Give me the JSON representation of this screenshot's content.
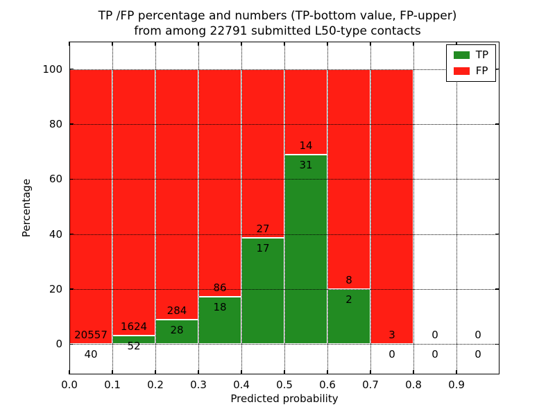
{
  "title": {
    "line1": "TP /FP percentage and numbers (TP-bottom value, FP-upper)",
    "line2": "from among 22791 submitted L50-type contacts"
  },
  "axes": {
    "xlabel": "Predicted probability",
    "ylabel": "Percentage",
    "x_ticks": [
      "0.0",
      "0.1",
      "0.2",
      "0.3",
      "0.4",
      "0.5",
      "0.6",
      "0.7",
      "0.8",
      "0.9"
    ],
    "y_ticks": [
      "0",
      "20",
      "40",
      "60",
      "80",
      "100"
    ]
  },
  "legend": {
    "items": [
      {
        "label": "TP",
        "color": "#228b22"
      },
      {
        "label": "FP",
        "color": "#ff1e14"
      }
    ]
  },
  "colors": {
    "tp": "#228b22",
    "fp": "#ff1e14",
    "grid": "#000000",
    "bar_edge": "#ffffff",
    "background": "#ffffff"
  },
  "chart_data": {
    "type": "bar",
    "stacked": true,
    "title": "TP /FP percentage and numbers (TP-bottom value, FP-upper) from among 22791 submitted L50-type contacts",
    "xlabel": "Predicted probability",
    "ylabel": "Percentage",
    "total_contacts": 22791,
    "xlim": [
      0,
      1.0
    ],
    "ylim": [
      -11,
      110
    ],
    "bin_width": 0.1,
    "grid": true,
    "legend_position": "upper right",
    "note": "Each bin stacks TP% (green, bottom) and FP% (red, top) to 100%; labels show raw counts: FP above boundary, TP below",
    "bins": [
      {
        "range": "0.0-0.1",
        "tp": 40,
        "fp": 20557,
        "tp_pct": 0.19
      },
      {
        "range": "0.1-0.2",
        "tp": 52,
        "fp": 1624,
        "tp_pct": 3.1
      },
      {
        "range": "0.2-0.3",
        "tp": 28,
        "fp": 284,
        "tp_pct": 8.97
      },
      {
        "range": "0.3-0.4",
        "tp": 18,
        "fp": 86,
        "tp_pct": 17.31
      },
      {
        "range": "0.4-0.5",
        "tp": 17,
        "fp": 27,
        "tp_pct": 38.64
      },
      {
        "range": "0.5-0.6",
        "tp": 31,
        "fp": 14,
        "tp_pct": 68.89
      },
      {
        "range": "0.6-0.7",
        "tp": 2,
        "fp": 8,
        "tp_pct": 20.0
      },
      {
        "range": "0.7-0.8",
        "tp": 0,
        "fp": 3,
        "tp_pct": 0.0
      },
      {
        "range": "0.8-0.9",
        "tp": 0,
        "fp": 0,
        "tp_pct": null
      },
      {
        "range": "0.9-1.0",
        "tp": 0,
        "fp": 0,
        "tp_pct": null
      }
    ]
  }
}
